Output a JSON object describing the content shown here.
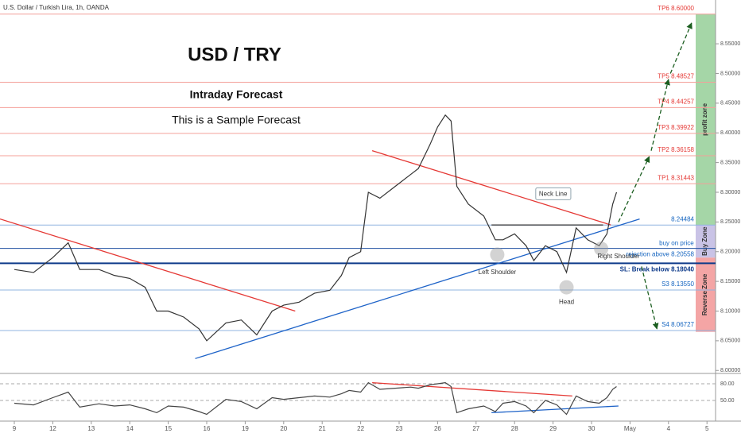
{
  "chart_data": {
    "type": "line",
    "header": "U.S. Dollar / Turkish Lira, 1h, OANDA",
    "title": "USD / TRY",
    "subtitle": "Intraday Forecast",
    "note": "This is a Sample Forecast",
    "x": [
      0,
      0.5,
      1,
      1.4,
      1.7,
      2.2,
      2.6,
      3,
      3.4,
      3.7,
      4,
      4.4,
      4.8,
      5,
      5.5,
      5.9,
      6.3,
      6.7,
      7,
      7.4,
      7.8,
      8.2,
      8.5,
      8.7,
      9,
      9.2,
      9.5,
      9.9,
      10.3,
      10.5,
      10.8,
      11,
      11.2,
      11.35,
      11.5,
      11.8,
      12.2,
      12.5,
      12.7,
      13,
      13.3,
      13.5,
      13.8,
      14.1,
      14.35,
      14.6,
      14.9,
      15.2,
      15.4,
      15.55,
      15.65
    ],
    "series": [
      {
        "name": "USD/TRY",
        "color": "#333333",
        "pane": "price",
        "values": [
          8.17,
          8.165,
          8.19,
          8.215,
          8.17,
          8.17,
          8.16,
          8.155,
          8.14,
          8.1,
          8.1,
          8.09,
          8.07,
          8.05,
          8.08,
          8.085,
          8.06,
          8.1,
          8.11,
          8.115,
          8.13,
          8.135,
          8.16,
          8.19,
          8.2,
          8.3,
          8.29,
          8.31,
          8.33,
          8.34,
          8.38,
          8.41,
          8.43,
          8.42,
          8.31,
          8.28,
          8.26,
          8.22,
          8.22,
          8.23,
          8.21,
          8.185,
          8.21,
          8.2,
          8.165,
          8.24,
          8.22,
          8.21,
          8.23,
          8.28,
          8.3
        ]
      },
      {
        "name": "RSI",
        "color": "#444444",
        "pane": "rsi",
        "values": [
          45,
          42,
          55,
          65,
          38,
          44,
          40,
          42,
          35,
          28,
          40,
          38,
          30,
          25,
          52,
          48,
          35,
          55,
          52,
          55,
          58,
          56,
          62,
          68,
          65,
          82,
          70,
          72,
          74,
          72,
          78,
          80,
          82,
          75,
          28,
          35,
          40,
          30,
          45,
          48,
          40,
          28,
          50,
          42,
          25,
          58,
          48,
          45,
          55,
          70,
          75
        ]
      }
    ],
    "xlim": [
      -0.372,
      18.223
    ],
    "xticks": [
      {
        "value": 0,
        "label": "9"
      },
      {
        "value": 1,
        "label": "12"
      },
      {
        "value": 2,
        "label": "13"
      },
      {
        "value": 3,
        "label": "14"
      },
      {
        "value": 4,
        "label": "15"
      },
      {
        "value": 5,
        "label": "16"
      },
      {
        "value": 6,
        "label": "19"
      },
      {
        "value": 7,
        "label": "20"
      },
      {
        "value": 8,
        "label": "21"
      },
      {
        "value": 9,
        "label": "22"
      },
      {
        "value": 10,
        "label": "23"
      },
      {
        "value": 11,
        "label": "26"
      },
      {
        "value": 12,
        "label": "27"
      },
      {
        "value": 13,
        "label": "28"
      },
      {
        "value": 14,
        "label": "29"
      },
      {
        "value": 15,
        "label": "30"
      },
      {
        "value": 16,
        "label": "May"
      },
      {
        "value": 17,
        "label": "4"
      },
      {
        "value": 18,
        "label": "5"
      }
    ],
    "ylim": [
      7.995,
      8.613
    ],
    "yticks": [
      {
        "value": 8.0,
        "label": "8.00000"
      },
      {
        "value": 8.05,
        "label": "8.05000"
      },
      {
        "value": 8.1,
        "label": "8.10000"
      },
      {
        "value": 8.15,
        "label": "8.15000"
      },
      {
        "value": 8.2,
        "label": "8.20000"
      },
      {
        "value": 8.25,
        "label": "8.25000"
      },
      {
        "value": 8.3,
        "label": "8.30000"
      },
      {
        "value": 8.35,
        "label": "8.35000"
      },
      {
        "value": 8.4,
        "label": "8.40000"
      },
      {
        "value": 8.45,
        "label": "8.45000"
      },
      {
        "value": 8.5,
        "label": "8.50000"
      },
      {
        "value": 8.55,
        "label": "8.55000"
      }
    ],
    "rsi_ylim": [
      20,
      90
    ],
    "rsi_yticks": [
      {
        "value": 80,
        "label": "80.00"
      },
      {
        "value": 50,
        "label": "50.00"
      }
    ],
    "levels": [
      {
        "label": "TP6 8.60000",
        "value": 8.6,
        "color": "#e53935",
        "line": "#f4a09a",
        "side": "above"
      },
      {
        "label": "TP5 8.48527",
        "value": 8.48527,
        "color": "#e53935",
        "line": "#f4a09a",
        "side": "above"
      },
      {
        "label": "TP4 8.44257",
        "value": 8.44257,
        "color": "#e53935",
        "line": "#f4a09a",
        "side": "above"
      },
      {
        "label": "TP3 8.39922",
        "value": 8.39922,
        "color": "#e53935",
        "line": "#f4a09a",
        "side": "above"
      },
      {
        "label": "TP2 8.36158",
        "value": 8.36158,
        "color": "#e53935",
        "line": "#f4a09a",
        "side": "above"
      },
      {
        "label": "TP1 8.31443",
        "value": 8.31443,
        "color": "#e53935",
        "line": "#f4a09a",
        "side": "above"
      },
      {
        "label": "8.24484",
        "value": 8.24484,
        "color": "#1565c0",
        "line": "#90b4e0",
        "side": "above"
      },
      {
        "label": "rejection above 8.20558",
        "value": 8.20558,
        "color": "#1565c0",
        "line": "#1e4fa0",
        "side": "below"
      },
      {
        "label": "SL: Break below 8.18040",
        "value": 8.1804,
        "color": "#0d3a8a",
        "line": "#0d3a8a",
        "side": "below"
      },
      {
        "label": "S3 8.13550",
        "value": 8.1355,
        "color": "#1565c0",
        "line": "#90b4e0",
        "side": "above"
      },
      {
        "label": "S4 8.06727",
        "value": 8.06727,
        "color": "#1565c0",
        "line": "#90b4e0",
        "side": "above"
      }
    ],
    "zones": [
      {
        "label": "profit zone",
        "from": 8.245,
        "to": 8.6,
        "color": "#a5d6a7"
      },
      {
        "label": "Buy Zone",
        "from": 8.19,
        "to": 8.245,
        "color": "#c9c3e6"
      },
      {
        "label": "Reverse Zone",
        "from": 8.065,
        "to": 8.19,
        "color": "#f4a5a5"
      }
    ],
    "trendlines": [
      {
        "pane": "price",
        "color": "#e53935",
        "points": [
          -0.372,
          8.255,
          7.3,
          8.1
        ]
      },
      {
        "pane": "price",
        "color": "#1e63c8",
        "points": [
          4.7,
          8.02,
          16.25,
          8.255
        ]
      },
      {
        "pane": "price",
        "color": "#e53935",
        "points": [
          9.3,
          8.37,
          15.5,
          8.245
        ]
      },
      {
        "pane": "price",
        "color": "#333333",
        "points": [
          12.4,
          8.245,
          15.3,
          8.245
        ]
      },
      {
        "pane": "rsi",
        "color": "#e53935",
        "points": [
          9.3,
          82,
          14.5,
          58
        ]
      },
      {
        "pane": "rsi",
        "color": "#1e63c8",
        "points": [
          12.4,
          28,
          15.7,
          40
        ]
      }
    ],
    "arrows": [
      {
        "color": "#1b5e20",
        "points": [
          15.7,
          8.25,
          16.5,
          8.36
        ]
      },
      {
        "color": "#1b5e20",
        "points": [
          16.55,
          8.37,
          17.0,
          8.49
        ]
      },
      {
        "color": "#1b5e20",
        "points": [
          17.05,
          8.5,
          17.6,
          8.585
        ]
      },
      {
        "color": "#1b5e20",
        "points": [
          16.3,
          8.175,
          16.7,
          8.07
        ]
      }
    ],
    "markers": [
      {
        "x": 12.55,
        "y": 8.195
      },
      {
        "x": 14.35,
        "y": 8.14
      },
      {
        "x": 15.25,
        "y": 8.205
      }
    ],
    "annotations": [
      {
        "text": "Left Shoulder",
        "x": 12.55,
        "y": 8.165,
        "anchor": "middle",
        "color": "#333333"
      },
      {
        "text": "Head",
        "x": 14.35,
        "y": 8.115,
        "anchor": "middle",
        "color": "#333333"
      },
      {
        "text": "Right Shoulder",
        "x": 15.7,
        "y": 8.192,
        "anchor": "middle",
        "color": "#333333"
      },
      {
        "text": "Neck Line",
        "x": 14.0,
        "y": 8.297,
        "anchor": "middle",
        "color": "#333333"
      },
      {
        "text": "buy on price",
        "x": 17.66,
        "y": 8.214,
        "anchor": "end",
        "color": "#1565c0"
      }
    ]
  }
}
